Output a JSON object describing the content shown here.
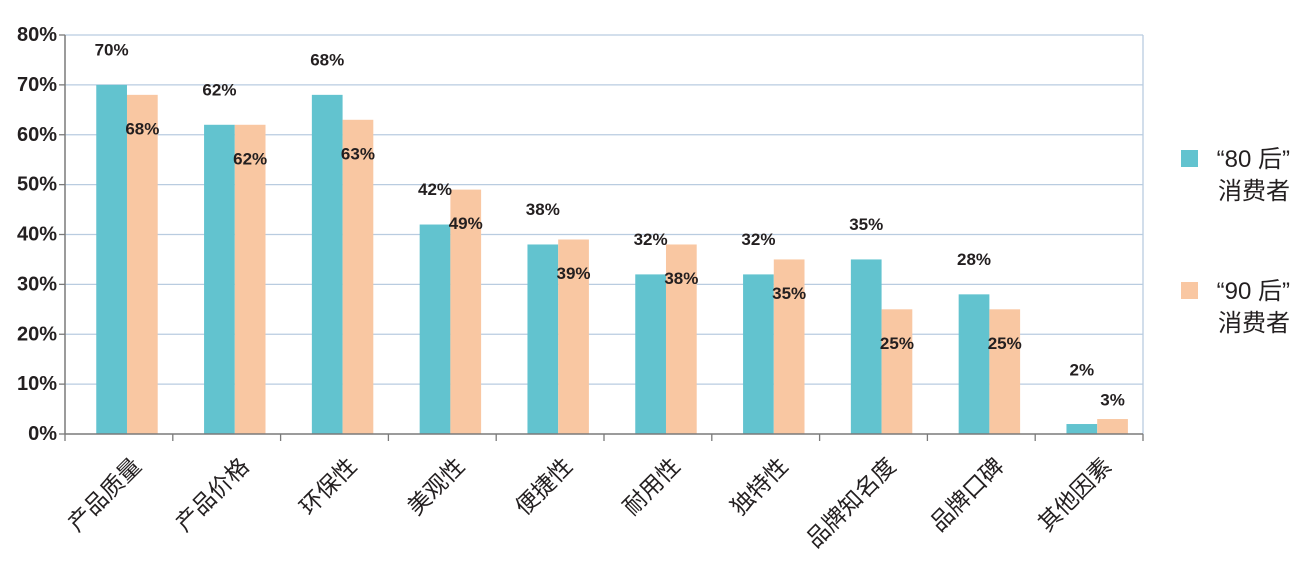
{
  "chart_data": {
    "type": "bar",
    "categories": [
      "产品质量",
      "产品价格",
      "环保性",
      "美观性",
      "便捷性",
      "耐用性",
      "独特性",
      "品牌知名度",
      "品牌口碑",
      "其他因素"
    ],
    "series": [
      {
        "name": "“80 后”消费者",
        "color": "#62c3cf",
        "values": [
          70,
          62,
          68,
          42,
          38,
          32,
          32,
          35,
          28,
          2
        ],
        "labels": [
          "70%",
          "62%",
          "68%",
          "42%",
          "38%",
          "32%",
          "32%",
          "35%",
          "28%",
          "2%"
        ]
      },
      {
        "name": "“90 后”消费者",
        "color": "#f9c7a2",
        "values": [
          68,
          62,
          63,
          49,
          39,
          38,
          35,
          25,
          25,
          3
        ],
        "labels": [
          "68%",
          "62%",
          "63%",
          "49%",
          "39%",
          "38%",
          "35%",
          "25%",
          "25%",
          "3%"
        ]
      }
    ],
    "ylim": [
      0,
      80
    ],
    "yticks": [
      0,
      10,
      20,
      30,
      40,
      50,
      60,
      70,
      80
    ],
    "ytick_labels": [
      "0%",
      "10%",
      "20%",
      "30%",
      "40%",
      "50%",
      "60%",
      "70%",
      "80%"
    ],
    "grid": true,
    "legend": "right",
    "colors": {
      "grid": "#b9cce0",
      "axis": "#7a7a7a"
    }
  }
}
